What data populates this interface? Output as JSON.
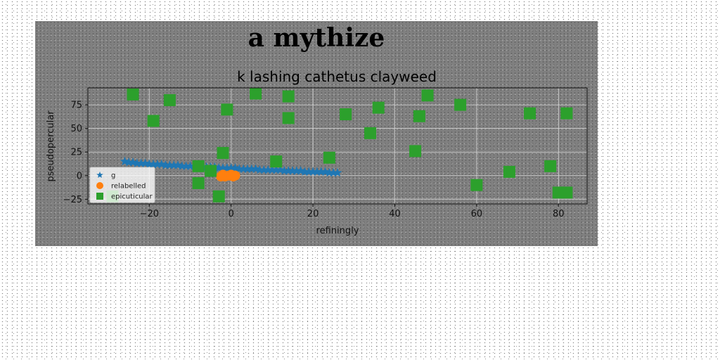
{
  "chart_data": {
    "type": "scatter",
    "suptitle": "a mythize",
    "title": "k lashing cathetus clayweed",
    "xlabel": "refiningly",
    "ylabel": "pseudopercular",
    "xlim": [
      -35,
      87
    ],
    "ylim": [
      -30,
      93
    ],
    "xticks": [
      -20,
      0,
      20,
      40,
      60,
      80
    ],
    "yticks": [
      -25,
      0,
      25,
      50,
      75
    ],
    "grid": true,
    "legend_position": "lower-left",
    "series": [
      {
        "name": "g",
        "marker": "star",
        "color": "#1f77b4",
        "points": [
          [
            -26,
            15
          ],
          [
            -25,
            14
          ],
          [
            -24,
            14
          ],
          [
            -23,
            13
          ],
          [
            -22,
            13
          ],
          [
            -21,
            13
          ],
          [
            -20,
            12
          ],
          [
            -19,
            12
          ],
          [
            -18,
            12
          ],
          [
            -17,
            12
          ],
          [
            -16,
            11
          ],
          [
            -15,
            11
          ],
          [
            -14,
            11
          ],
          [
            -13,
            11
          ],
          [
            -12,
            10
          ],
          [
            -11,
            10
          ],
          [
            -10,
            10
          ],
          [
            -9,
            10
          ],
          [
            -8,
            9
          ],
          [
            -7,
            9
          ],
          [
            -6,
            9
          ],
          [
            -5,
            9
          ],
          [
            -4,
            9
          ],
          [
            -3,
            8
          ],
          [
            -2,
            8
          ],
          [
            -1,
            8
          ],
          [
            0,
            8
          ],
          [
            1,
            8
          ],
          [
            2,
            7
          ],
          [
            3,
            7
          ],
          [
            4,
            7
          ],
          [
            5,
            7
          ],
          [
            6,
            7
          ],
          [
            7,
            6
          ],
          [
            8,
            6
          ],
          [
            9,
            6
          ],
          [
            10,
            6
          ],
          [
            11,
            6
          ],
          [
            12,
            6
          ],
          [
            13,
            5
          ],
          [
            14,
            5
          ],
          [
            15,
            5
          ],
          [
            16,
            5
          ],
          [
            17,
            5
          ],
          [
            18,
            4
          ],
          [
            19,
            4
          ],
          [
            20,
            4
          ],
          [
            21,
            4
          ],
          [
            22,
            4
          ],
          [
            23,
            4
          ],
          [
            24,
            3
          ],
          [
            25,
            3
          ],
          [
            26,
            3
          ]
        ]
      },
      {
        "name": "relabelled",
        "marker": "circle",
        "color": "#ff7f0e",
        "points": [
          [
            -2.5,
            -1
          ],
          [
            -1.5,
            -1
          ],
          [
            -0.5,
            0
          ],
          [
            0.5,
            -1
          ],
          [
            -2,
            1
          ],
          [
            0,
            1
          ],
          [
            1,
            0
          ]
        ]
      },
      {
        "name": "epicuticular",
        "marker": "square",
        "color": "#2ca02c",
        "points": [
          [
            -24,
            86
          ],
          [
            -15,
            80
          ],
          [
            -19,
            58
          ],
          [
            -8,
            10
          ],
          [
            -8,
            -8
          ],
          [
            -5,
            5
          ],
          [
            -3,
            -22
          ],
          [
            -2,
            24
          ],
          [
            -1,
            70
          ],
          [
            6,
            87
          ],
          [
            11,
            15
          ],
          [
            14,
            84
          ],
          [
            14,
            61
          ],
          [
            24,
            19
          ],
          [
            28,
            65
          ],
          [
            34,
            45
          ],
          [
            36,
            72
          ],
          [
            45,
            26
          ],
          [
            46,
            63
          ],
          [
            48,
            85
          ],
          [
            56,
            75
          ],
          [
            60,
            -10
          ],
          [
            68,
            4
          ],
          [
            73,
            66
          ],
          [
            78,
            10
          ],
          [
            80,
            -18
          ],
          [
            82,
            -18
          ],
          [
            82,
            66
          ],
          [
            -29,
            -22
          ]
        ]
      }
    ]
  }
}
